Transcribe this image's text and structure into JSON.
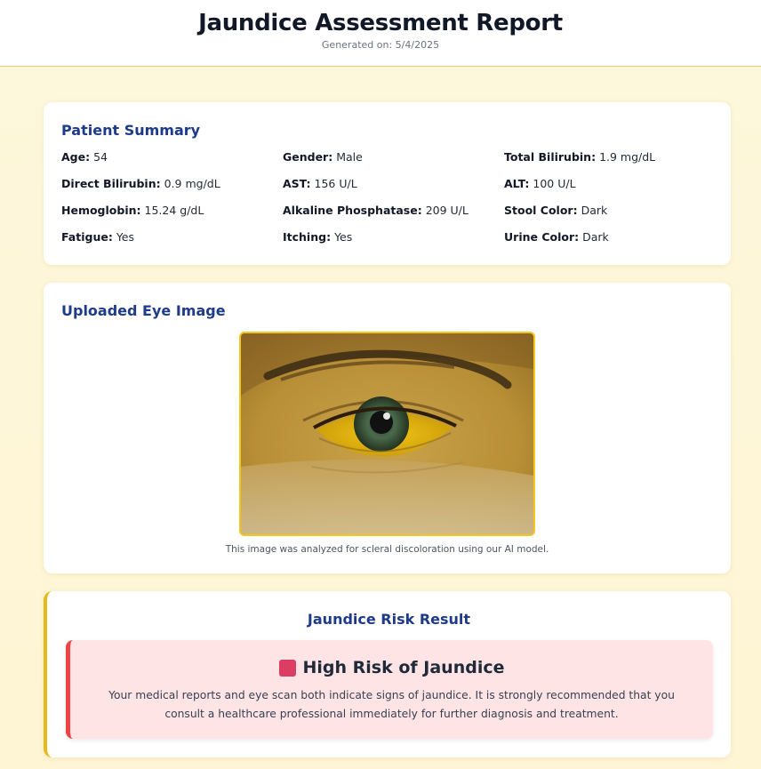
{
  "header": {
    "title": "Jaundice Assessment Report",
    "generated_label": "Generated on:",
    "generated_date": "5/4/2025"
  },
  "summary": {
    "title": "Patient Summary",
    "fields": [
      {
        "label": "Age:",
        "value": "54"
      },
      {
        "label": "Gender:",
        "value": "Male"
      },
      {
        "label": "Total Bilirubin:",
        "value": "1.9 mg/dL"
      },
      {
        "label": "Direct Bilirubin:",
        "value": "0.9 mg/dL"
      },
      {
        "label": "AST:",
        "value": "156 U/L"
      },
      {
        "label": "ALT:",
        "value": "100 U/L"
      },
      {
        "label": "Hemoglobin:",
        "value": "15.24 g/dL"
      },
      {
        "label": "Alkaline Phosphatase:",
        "value": "209 U/L"
      },
      {
        "label": "Stool Color:",
        "value": "Dark"
      },
      {
        "label": "Fatigue:",
        "value": "Yes"
      },
      {
        "label": "Itching:",
        "value": "Yes"
      },
      {
        "label": "Urine Color:",
        "value": "Dark"
      }
    ]
  },
  "eye_image": {
    "title": "Uploaded Eye Image",
    "caption": "This image was analyzed for scleral discoloration using our AI model."
  },
  "result": {
    "title": "Jaundice Risk Result",
    "risk_label": "High Risk of Jaundice",
    "message": "Your medical reports and eye scan both indicate signs of jaundice. It is strongly recommended that you consult a healthcare professional immediately for further diagnosis and treatment.",
    "icon": "red-square-icon"
  },
  "colors": {
    "heading_blue": "#1e3a8a",
    "accent_yellow": "#e5b919",
    "risk_red": "#ef4444",
    "risk_bg": "#ffe4e6"
  }
}
